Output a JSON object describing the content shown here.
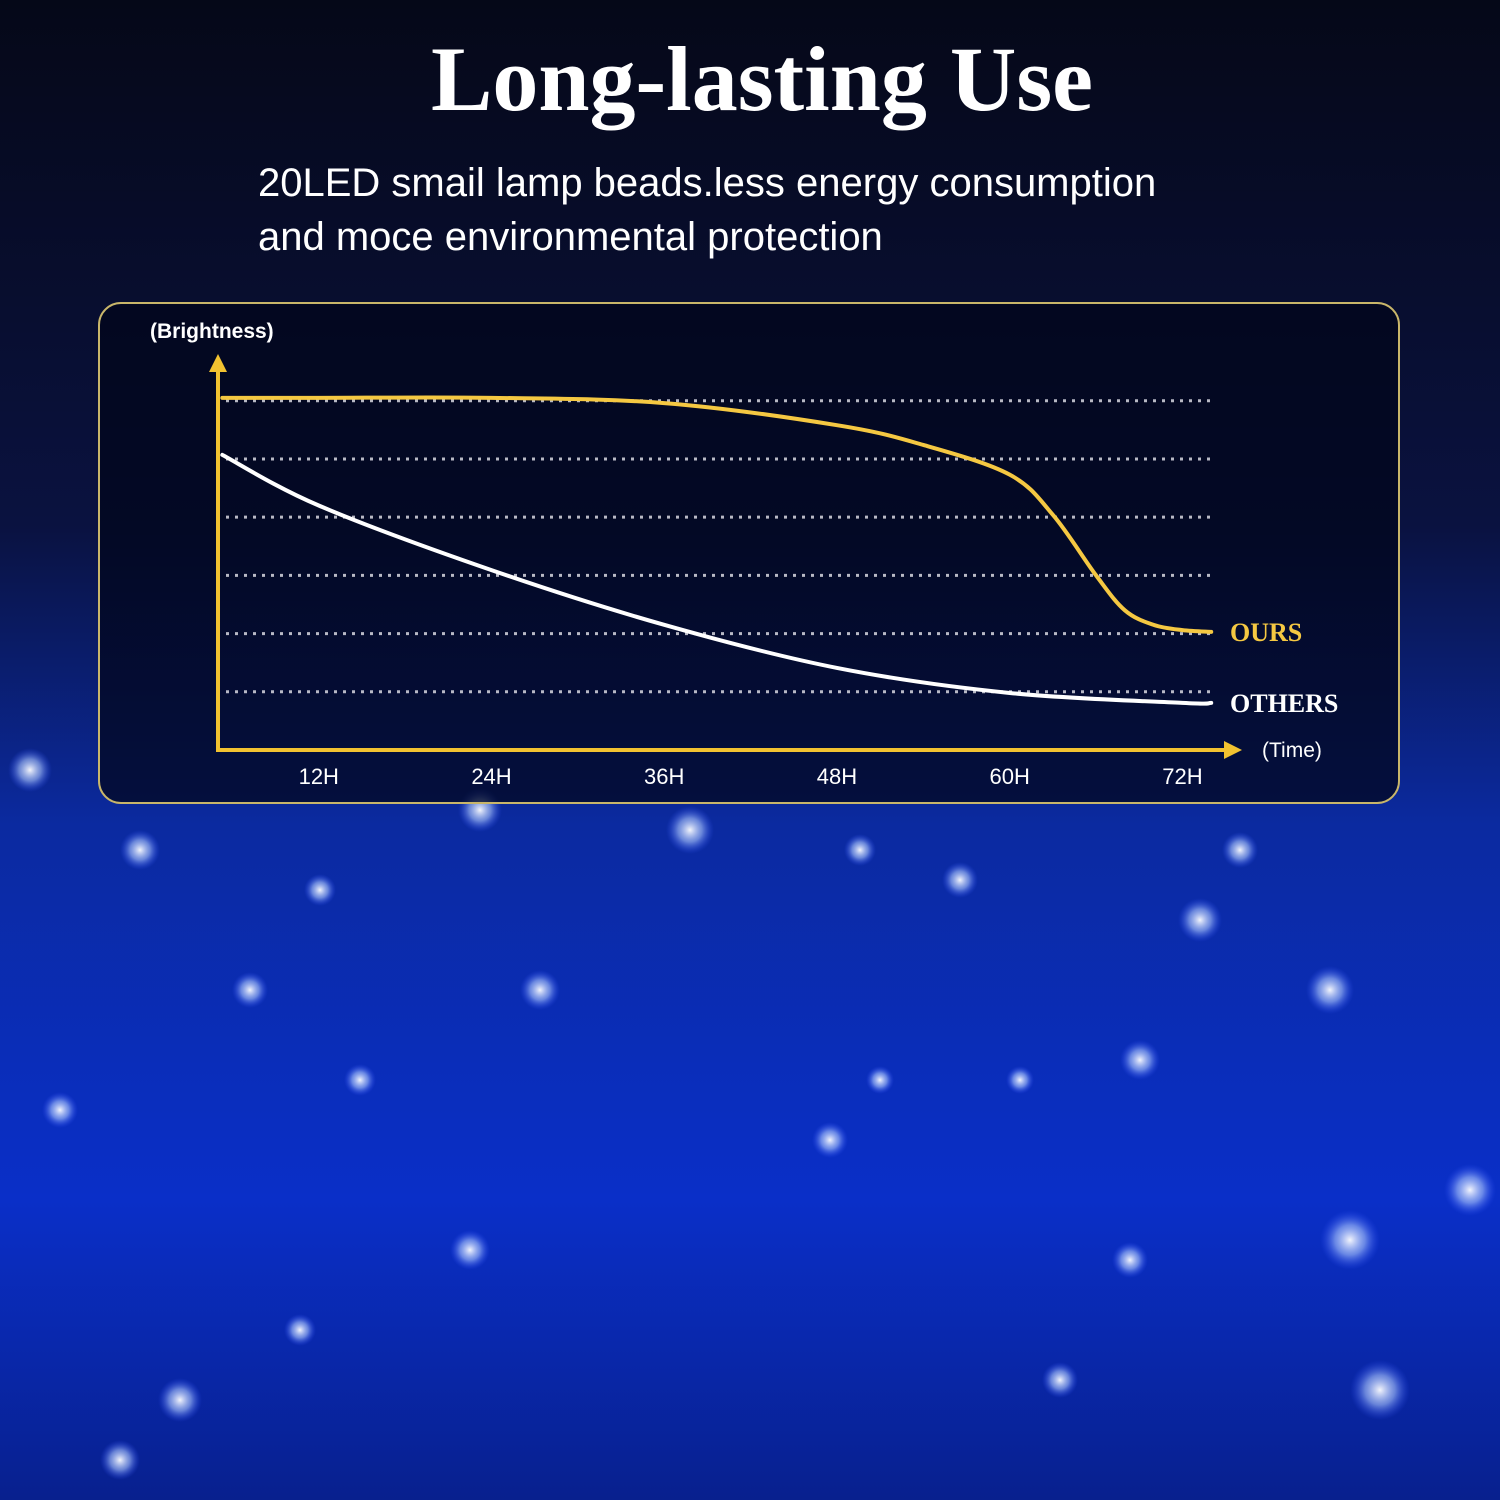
{
  "chart_data": {
    "type": "line",
    "title": "Long-lasting Use",
    "subtitle": [
      "20LED smail lamp beads.less energy consumption",
      "and moce environmental protection"
    ],
    "y_label": "(Brightness)",
    "x_label": "(Time)",
    "xlim": [
      5,
      76
    ],
    "xticks": [
      {
        "value": 12,
        "label": "12H"
      },
      {
        "value": 24,
        "label": "24H"
      },
      {
        "value": 36,
        "label": "36H"
      },
      {
        "value": 48,
        "label": "48H"
      },
      {
        "value": 60,
        "label": "60H"
      },
      {
        "value": 72,
        "label": "72H"
      }
    ],
    "ylim": [
      0,
      6.7
    ],
    "yticks": [
      1,
      2,
      3,
      4,
      5,
      6
    ],
    "grid": true,
    "series": [
      {
        "name": "OURS",
        "color": "#f5c842",
        "x": [
          5.3,
          12,
          24,
          36,
          48,
          54,
          60,
          63,
          66,
          68,
          70,
          72,
          74
        ],
        "values": [
          6.05,
          6.05,
          6.05,
          5.96,
          5.58,
          5.24,
          4.73,
          4.04,
          3.0,
          2.4,
          2.15,
          2.06,
          2.03
        ]
      },
      {
        "name": "OTHERS",
        "color": "#ffffff",
        "x": [
          5.3,
          12,
          24,
          36,
          48,
          60,
          72,
          74
        ],
        "values": [
          5.07,
          4.2,
          3.09,
          2.15,
          1.41,
          0.98,
          0.81,
          0.81
        ]
      }
    ]
  }
}
